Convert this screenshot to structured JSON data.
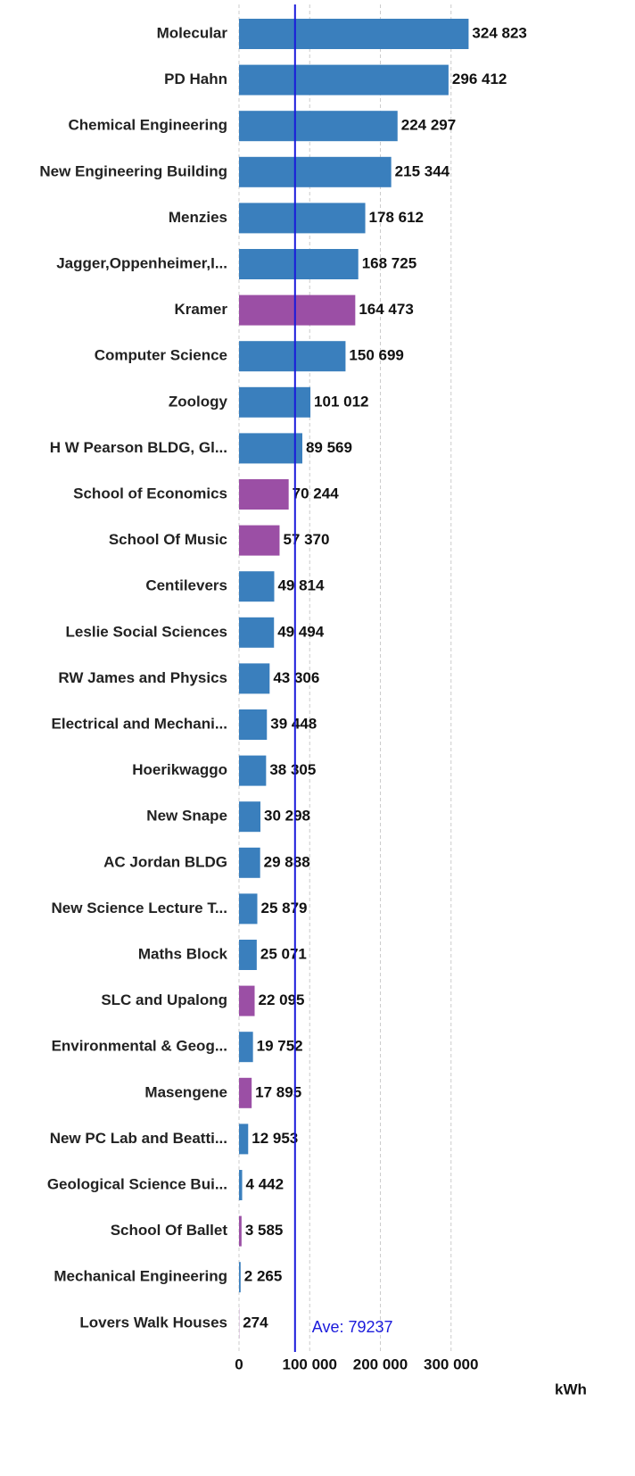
{
  "chart_data": {
    "type": "bar",
    "orientation": "horizontal",
    "categories": [
      "Molecular",
      "PD Hahn",
      "Chemical Engineering",
      "New Engineering Building",
      "Menzies",
      "Jagger,Oppenheimer,I...",
      "Kramer",
      "Computer Science",
      "Zoology",
      "H W Pearson BLDG, Gl...",
      "School of Economics",
      "School Of Music",
      "Centilevers",
      "Leslie Social Sciences",
      "RW James and Physics",
      "Electrical and Mechani...",
      "Hoerikwaggo",
      "New Snape",
      "AC Jordan BLDG",
      "New Science Lecture T...",
      "Maths Block",
      "SLC and Upalong",
      "Environmental & Geog...",
      "Masengene",
      "New PC Lab and Beatti...",
      "Geological Science Bui...",
      "School Of Ballet",
      "Mechanical Engineering",
      "Lovers Walk Houses"
    ],
    "values": [
      324823,
      296412,
      224297,
      215344,
      178612,
      168725,
      164473,
      150699,
      101012,
      89569,
      70244,
      57370,
      49814,
      49494,
      43306,
      39448,
      38305,
      30298,
      29888,
      25879,
      25071,
      22095,
      19752,
      17895,
      12953,
      4442,
      3585,
      2265,
      274
    ],
    "value_labels": [
      "324 823",
      "296 412",
      "224 297",
      "215 344",
      "178 612",
      "168 725",
      "164 473",
      "150 699",
      "101 012",
      "89 569",
      "70 244",
      "57 370",
      "49 814",
      "49 494",
      "43 306",
      "39 448",
      "38 305",
      "30 298",
      "29 888",
      "25 879",
      "25 071",
      "22 095",
      "19 752",
      "17 895",
      "12 953",
      "4 442",
      "3 585",
      "2 265",
      "274"
    ],
    "colors": [
      "#3a7fbd",
      "#3a7fbd",
      "#3a7fbd",
      "#3a7fbd",
      "#3a7fbd",
      "#3a7fbd",
      "#9b4fa5",
      "#3a7fbd",
      "#3a7fbd",
      "#3a7fbd",
      "#9b4fa5",
      "#9b4fa5",
      "#3a7fbd",
      "#3a7fbd",
      "#3a7fbd",
      "#3a7fbd",
      "#3a7fbd",
      "#3a7fbd",
      "#3a7fbd",
      "#3a7fbd",
      "#3a7fbd",
      "#9b4fa5",
      "#3a7fbd",
      "#9b4fa5",
      "#3a7fbd",
      "#3a7fbd",
      "#9b4fa5",
      "#3a7fbd",
      "#9b4fa5"
    ],
    "xlabel": "kWh",
    "xlim": [
      0,
      400000
    ],
    "xticks": [
      0,
      {
        "value": 100000,
        "label": "100 000"
      },
      {
        "value": 200000,
        "label": "200 000"
      },
      {
        "value": 300000,
        "label": "300 000"
      }
    ],
    "grid": true,
    "average": {
      "value": 79237,
      "label": "Ave: 79237",
      "color": "#1a1adb"
    }
  }
}
